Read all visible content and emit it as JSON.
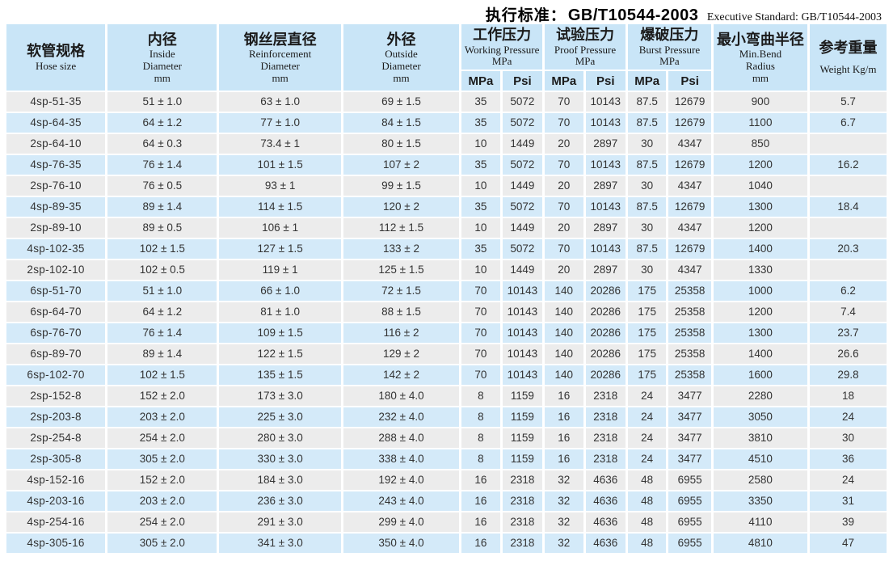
{
  "title": {
    "zh_label": "执行标准：",
    "code": "GB/T10544-2003",
    "en_label": "Executive Standard: GB/T10544-2003"
  },
  "table": {
    "columns": [
      {
        "zh": "软管规格",
        "en": "Hose size",
        "unit": ""
      },
      {
        "zh": "内径",
        "en": "Inside\nDiameter",
        "unit": "mm"
      },
      {
        "zh": "钢丝层直径",
        "en": "Reinforcement\nDiameter",
        "unit": "mm"
      },
      {
        "zh": "外径",
        "en": "Outside\nDiameter",
        "unit": "mm"
      },
      {
        "zh": "工作压力",
        "en": "Working Pressure",
        "unit": "MPa"
      },
      {
        "zh": "试验压力",
        "en": "Proof Pressure",
        "unit": "MPa"
      },
      {
        "zh": "爆破压力",
        "en": "Burst Pressure",
        "unit": "MPa"
      },
      {
        "zh": "最小弯曲半径",
        "en": "Min.Bend\nRadius",
        "unit": "mm"
      },
      {
        "zh": "参考重量",
        "en": "Weight Kg/m",
        "unit": ""
      }
    ],
    "subheaders": [
      "MPa",
      "Psi",
      "MPa",
      "Psi",
      "MPa",
      "Psi"
    ],
    "rows": [
      [
        "4sp-51-35",
        "51 ± 1.0",
        "63 ± 1.0",
        "69 ± 1.5",
        "35",
        "5072",
        "70",
        "10143",
        "87.5",
        "12679",
        "900",
        "5.7"
      ],
      [
        "4sp-64-35",
        "64 ± 1.2",
        "77 ± 1.0",
        "84 ± 1.5",
        "35",
        "5072",
        "70",
        "10143",
        "87.5",
        "12679",
        "1100",
        "6.7"
      ],
      [
        "2sp-64-10",
        "64 ± 0.3",
        "73.4 ± 1",
        "80 ± 1.5",
        "10",
        "1449",
        "20",
        "2897",
        "30",
        "4347",
        "850",
        ""
      ],
      [
        "4sp-76-35",
        "76 ± 1.4",
        "101 ± 1.5",
        "107 ± 2",
        "35",
        "5072",
        "70",
        "10143",
        "87.5",
        "12679",
        "1200",
        "16.2"
      ],
      [
        "2sp-76-10",
        "76 ± 0.5",
        "93 ± 1",
        "99 ± 1.5",
        "10",
        "1449",
        "20",
        "2897",
        "30",
        "4347",
        "1040",
        ""
      ],
      [
        "4sp-89-35",
        "89 ± 1.4",
        "114 ± 1.5",
        "120 ± 2",
        "35",
        "5072",
        "70",
        "10143",
        "87.5",
        "12679",
        "1300",
        "18.4"
      ],
      [
        "2sp-89-10",
        "89 ± 0.5",
        "106 ± 1",
        "112 ± 1.5",
        "10",
        "1449",
        "20",
        "2897",
        "30",
        "4347",
        "1200",
        ""
      ],
      [
        "4sp-102-35",
        "102 ± 1.5",
        "127 ± 1.5",
        "133 ± 2",
        "35",
        "5072",
        "70",
        "10143",
        "87.5",
        "12679",
        "1400",
        "20.3"
      ],
      [
        "2sp-102-10",
        "102 ± 0.5",
        "119 ± 1",
        "125 ± 1.5",
        "10",
        "1449",
        "20",
        "2897",
        "30",
        "4347",
        "1330",
        ""
      ],
      [
        "6sp-51-70",
        "51 ± 1.0",
        "66 ± 1.0",
        "72 ± 1.5",
        "70",
        "10143",
        "140",
        "20286",
        "175",
        "25358",
        "1000",
        "6.2"
      ],
      [
        "6sp-64-70",
        "64 ± 1.2",
        "81 ± 1.0",
        "88 ± 1.5",
        "70",
        "10143",
        "140",
        "20286",
        "175",
        "25358",
        "1200",
        "7.4"
      ],
      [
        "6sp-76-70",
        "76 ± 1.4",
        "109 ± 1.5",
        "116 ± 2",
        "70",
        "10143",
        "140",
        "20286",
        "175",
        "25358",
        "1300",
        "23.7"
      ],
      [
        "6sp-89-70",
        "89 ± 1.4",
        "122 ± 1.5",
        "129 ± 2",
        "70",
        "10143",
        "140",
        "20286",
        "175",
        "25358",
        "1400",
        "26.6"
      ],
      [
        "6sp-102-70",
        "102 ± 1.5",
        "135 ± 1.5",
        "142 ± 2",
        "70",
        "10143",
        "140",
        "20286",
        "175",
        "25358",
        "1600",
        "29.8"
      ],
      [
        "2sp-152-8",
        "152 ± 2.0",
        "173 ± 3.0",
        "180 ± 4.0",
        "8",
        "1159",
        "16",
        "2318",
        "24",
        "3477",
        "2280",
        "18"
      ],
      [
        "2sp-203-8",
        "203 ± 2.0",
        "225 ± 3.0",
        "232 ± 4.0",
        "8",
        "1159",
        "16",
        "2318",
        "24",
        "3477",
        "3050",
        "24"
      ],
      [
        "2sp-254-8",
        "254 ± 2.0",
        "280 ± 3.0",
        "288 ± 4.0",
        "8",
        "1159",
        "16",
        "2318",
        "24",
        "3477",
        "3810",
        "30"
      ],
      [
        "2sp-305-8",
        "305 ± 2.0",
        "330 ± 3.0",
        "338 ± 4.0",
        "8",
        "1159",
        "16",
        "2318",
        "24",
        "3477",
        "4510",
        "36"
      ],
      [
        "4sp-152-16",
        "152 ± 2.0",
        "184 ± 3.0",
        "192 ± 4.0",
        "16",
        "2318",
        "32",
        "4636",
        "48",
        "6955",
        "2580",
        "24"
      ],
      [
        "4sp-203-16",
        "203 ± 2.0",
        "236 ± 3.0",
        "243 ± 4.0",
        "16",
        "2318",
        "32",
        "4636",
        "48",
        "6955",
        "3350",
        "31"
      ],
      [
        "4sp-254-16",
        "254 ± 2.0",
        "291 ± 3.0",
        "299 ± 4.0",
        "16",
        "2318",
        "32",
        "4636",
        "48",
        "6955",
        "4110",
        "39"
      ],
      [
        "4sp-305-16",
        "305 ± 2.0",
        "341 ± 3.0",
        "350 ± 4.0",
        "16",
        "2318",
        "32",
        "4636",
        "48",
        "6955",
        "4810",
        "47"
      ]
    ]
  }
}
